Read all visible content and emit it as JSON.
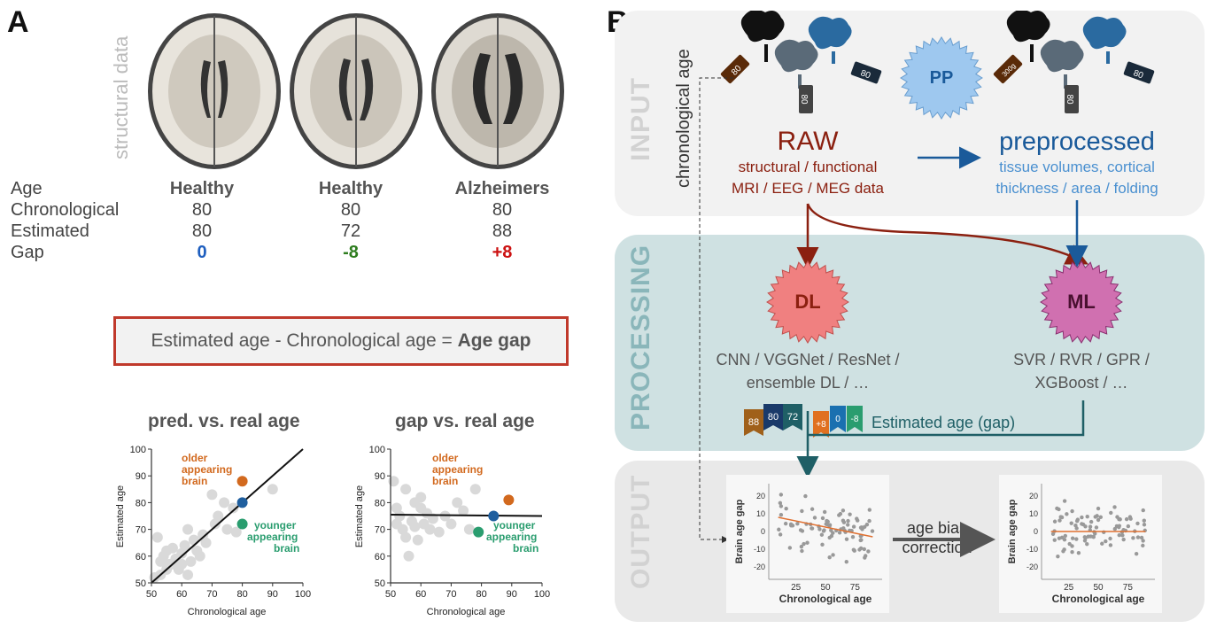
{
  "panelA": {
    "letter": "A",
    "structural_label": "structural data",
    "table": {
      "row_labels": [
        "Age",
        "Chronological",
        "Estimated",
        "Gap"
      ],
      "columns": [
        {
          "header": "Healthy",
          "chronological": "80",
          "estimated": "80",
          "gap": "0"
        },
        {
          "header": "Healthy",
          "chronological": "80",
          "estimated": "72",
          "gap": "-8"
        },
        {
          "header": "Alzheimers",
          "chronological": "80",
          "estimated": "88",
          "gap": "+8"
        }
      ]
    },
    "formula": {
      "left": "Estimated age - Chronological age = ",
      "right": "Age gap"
    },
    "plot1_title": "pred. vs. real age",
    "plot2_title": "gap vs. real age",
    "older_label": [
      "older",
      "appearing",
      "brain"
    ],
    "younger_label": [
      "younger",
      "appearing",
      "brain"
    ],
    "colors": {
      "gap_zero": "#1f5fbf",
      "gap_neg": "#2e7d1f",
      "gap_pos": "#cc1111",
      "older": "#d2691e",
      "younger": "#2a9d6f",
      "blue_point": "#1f5f9f"
    }
  },
  "chart_data": [
    {
      "type": "scatter",
      "title": "pred. vs. real age",
      "xlabel": "Chronological age",
      "ylabel": "Estimated age",
      "xlim": [
        50,
        100
      ],
      "ylim": [
        50,
        100
      ],
      "xticks": [
        50,
        60,
        70,
        80,
        90,
        100
      ],
      "yticks": [
        50,
        60,
        70,
        80,
        90,
        100
      ],
      "points": [
        [
          51,
          52
        ],
        [
          52,
          67
        ],
        [
          53,
          58
        ],
        [
          54,
          60
        ],
        [
          55,
          62
        ],
        [
          56,
          57
        ],
        [
          57,
          63
        ],
        [
          58,
          59
        ],
        [
          59,
          55
        ],
        [
          60,
          61
        ],
        [
          61,
          64
        ],
        [
          62,
          70
        ],
        [
          63,
          58
        ],
        [
          64,
          66
        ],
        [
          65,
          62
        ],
        [
          66,
          60
        ],
        [
          67,
          68
        ],
        [
          68,
          65
        ],
        [
          70,
          83
        ],
        [
          71,
          72
        ],
        [
          72,
          75
        ],
        [
          74,
          80
        ],
        [
          75,
          70
        ],
        [
          77,
          78
        ],
        [
          78,
          69
        ],
        [
          90,
          85
        ],
        [
          55,
          55
        ],
        [
          53,
          53
        ],
        [
          57,
          57
        ],
        [
          60,
          57
        ],
        [
          62,
          53
        ]
      ],
      "fit_line": [
        [
          50,
          50
        ],
        [
          100,
          100
        ]
      ],
      "highlight": [
        {
          "x": 80,
          "y": 88,
          "label": "older appearing brain"
        },
        {
          "x": 80,
          "y": 80,
          "label": ""
        },
        {
          "x": 80,
          "y": 72,
          "label": "younger appearing brain"
        }
      ]
    },
    {
      "type": "scatter",
      "title": "gap vs. real age",
      "xlabel": "Chronological age",
      "ylabel": "Estimated age",
      "xlim": [
        50,
        100
      ],
      "ylim": [
        50,
        100
      ],
      "xticks": [
        50,
        60,
        70,
        80,
        90,
        100
      ],
      "yticks": [
        50,
        60,
        70,
        80,
        90,
        100
      ],
      "points": [
        [
          51,
          88
        ],
        [
          52,
          78
        ],
        [
          53,
          75
        ],
        [
          54,
          70
        ],
        [
          55,
          85
        ],
        [
          56,
          60
        ],
        [
          57,
          73
        ],
        [
          58,
          80
        ],
        [
          59,
          66
        ],
        [
          60,
          78
        ],
        [
          61,
          72
        ],
        [
          62,
          76
        ],
        [
          63,
          70
        ],
        [
          64,
          74
        ],
        [
          66,
          69
        ],
        [
          68,
          75
        ],
        [
          70,
          72
        ],
        [
          72,
          80
        ],
        [
          74,
          77
        ],
        [
          76,
          70
        ],
        [
          78,
          85
        ],
        [
          52,
          72
        ],
        [
          55,
          67
        ],
        [
          58,
          71
        ],
        [
          60,
          82
        ]
      ],
      "fit_line": [
        [
          50,
          75.5
        ],
        [
          100,
          75
        ]
      ],
      "highlight": [
        {
          "x": 89,
          "y": 81,
          "label": "older appearing brain"
        },
        {
          "x": 84,
          "y": 75,
          "label": ""
        },
        {
          "x": 79,
          "y": 69,
          "label": "younger appearing brain"
        }
      ]
    },
    {
      "type": "scatter",
      "title": "",
      "xlabel": "Chronological age",
      "ylabel": "Brain age gap",
      "xticks": [
        25,
        50,
        75
      ],
      "yticks": [
        -20,
        -10,
        0,
        10,
        20
      ],
      "xlim": [
        5,
        95
      ],
      "ylim": [
        -25,
        25
      ],
      "trend": "negative",
      "fit_line": [
        [
          10,
          8
        ],
        [
          90,
          -3
        ]
      ]
    },
    {
      "type": "scatter",
      "title": "",
      "xlabel": "Chronological age",
      "ylabel": "Brain age gap",
      "xticks": [
        25,
        50,
        75
      ],
      "yticks": [
        -20,
        -10,
        0,
        10,
        20
      ],
      "xlim": [
        5,
        95
      ],
      "ylim": [
        -25,
        25
      ],
      "trend": "flat",
      "fit_line": [
        [
          10,
          0
        ],
        [
          90,
          0
        ]
      ]
    }
  ],
  "panelB": {
    "letter": "B",
    "input_label": "INPUT",
    "processing_label": "PROCESSING",
    "output_label": "OUTPUT",
    "chrono_label": "chronological age",
    "pp_label": "PP",
    "raw_title": "RAW",
    "raw_sub": [
      "structural / functional",
      "MRI / EEG / MEG data"
    ],
    "pre_title": "preprocessed",
    "pre_sub": [
      "tissue volumes, cortical",
      "thickness / area / folding"
    ],
    "dl_label": "DL",
    "ml_label": "ML",
    "dl_sub": [
      "CNN / VGGNet / ResNet /",
      "ensemble DL / …"
    ],
    "ml_sub": [
      "SVR / RVR / GPR /",
      "XGBoost / …"
    ],
    "estimated_gap_label": "Estimated age (gap)",
    "flags_age": [
      "88",
      "80",
      "72"
    ],
    "flags_gap": [
      "+8",
      "0",
      "-8"
    ],
    "tags_raw": [
      "80",
      "80",
      "80"
    ],
    "tags_pre": [
      "300g",
      "80",
      "80"
    ],
    "bias_label": [
      "age bias",
      "correction"
    ],
    "colors": {
      "raw": "#8b2010",
      "pre": "#1a5a9a",
      "pre_sub": "#4a90d0",
      "input_bg": "#f2f2f2",
      "processing_bg": "#cfe1e2",
      "output_bg": "#e9e9e9",
      "teal": "#1f5f66",
      "sect_gray": "#d8d8d8",
      "sect_teal": "#8ab6ba"
    }
  }
}
